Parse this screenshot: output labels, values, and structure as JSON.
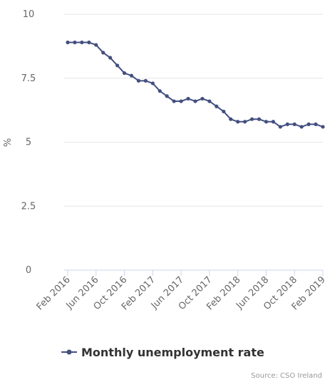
{
  "chart_data": {
    "type": "line",
    "ylabel": "%",
    "xlabel": "",
    "ylim": [
      0,
      10
    ],
    "yticks": [
      0,
      2.5,
      5,
      7.5,
      10
    ],
    "ytick_labels": [
      "0",
      "2.5",
      "5",
      "7.5",
      "10"
    ],
    "xtick_labels": [
      "Feb 2016",
      "Jun 2016",
      "Oct 2016",
      "Feb 2017",
      "Jun 2017",
      "Oct 2017",
      "Feb 2018",
      "Jun 2018",
      "Oct 2018",
      "Feb 2019"
    ],
    "x": [
      "Feb 2016",
      "Mar 2016",
      "Apr 2016",
      "May 2016",
      "Jun 2016",
      "Jul 2016",
      "Aug 2016",
      "Sep 2016",
      "Oct 2016",
      "Nov 2016",
      "Dec 2016",
      "Jan 2017",
      "Feb 2017",
      "Mar 2017",
      "Apr 2017",
      "May 2017",
      "Jun 2017",
      "Jul 2017",
      "Aug 2017",
      "Sep 2017",
      "Oct 2017",
      "Nov 2017",
      "Dec 2017",
      "Jan 2018",
      "Feb 2018",
      "Mar 2018",
      "Apr 2018",
      "May 2018",
      "Jun 2018",
      "Jul 2018",
      "Aug 2018",
      "Sep 2018",
      "Oct 2018",
      "Nov 2018",
      "Dec 2018",
      "Jan 2019",
      "Feb 2019"
    ],
    "series": [
      {
        "name": "Monthly unemployment rate",
        "color": "#434f7f",
        "values": [
          8.9,
          8.9,
          8.9,
          8.9,
          8.8,
          8.5,
          8.3,
          8.0,
          7.7,
          7.6,
          7.4,
          7.4,
          7.3,
          7.0,
          6.8,
          6.6,
          6.6,
          6.7,
          6.6,
          6.7,
          6.6,
          6.4,
          6.2,
          5.9,
          5.8,
          5.8,
          5.9,
          5.9,
          5.8,
          5.8,
          5.6,
          5.7,
          5.7,
          5.6,
          5.7,
          5.7,
          5.6
        ]
      }
    ],
    "grid": true,
    "legend_position": "bottom-left",
    "credit": "Source: CSO Ireland"
  },
  "colors": {
    "gridline": "#e6e6e6",
    "axis": "#ccd6eb",
    "series": "#434f7f"
  }
}
